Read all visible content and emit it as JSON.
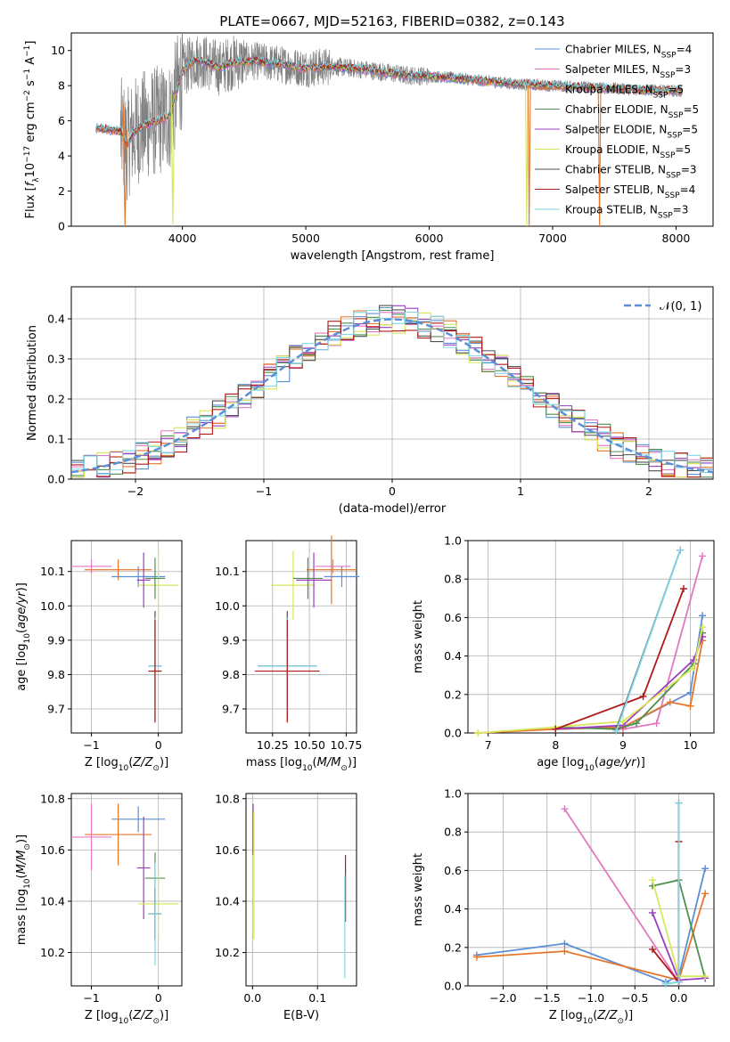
{
  "figure_title": "PLATE=0667, MJD=52163, FIBERID=0382, z=0.143",
  "palette": {
    "chabrier_miles": "#5b8fd6",
    "salpeter_miles": "#e377c2",
    "kroupa_miles": "#e5772a",
    "chabrier_elodie": "#4f8f4f",
    "salpeter_elodie": "#9b3fbf",
    "kroupa_elodie": "#d8e65c",
    "chabrier_stelib": "#505050",
    "salpeter_stelib": "#b01a1a",
    "kroupa_stelib": "#7fd6e6",
    "data": "#808080"
  },
  "chart_data": [
    {
      "id": "spectrum",
      "type": "line",
      "title": "PLATE=0667, MJD=52163, FIBERID=0382, z=0.143",
      "xlabel": "wavelength [Angstrom, rest frame]",
      "ylabel": "Flux [f_λ10^-17 erg cm^-2 s^-1 A^-1]",
      "xlim": [
        3100,
        8300
      ],
      "ylim": [
        0,
        11
      ],
      "xticks": [
        4000,
        5000,
        6000,
        7000,
        8000
      ],
      "yticks": [
        0,
        2,
        4,
        6,
        8,
        10
      ],
      "grid": false,
      "legend": "top-right",
      "legend_entries": [
        {
          "key": "chabrier_miles",
          "text": "Chabrier MILES, N",
          "sub": "SSP",
          "num": "=4"
        },
        {
          "key": "salpeter_miles",
          "text": "Salpeter MILES, N",
          "sub": "SSP",
          "num": "=3"
        },
        {
          "key": "kroupa_miles",
          "text": "Kroupa MILES, N",
          "sub": "SSP",
          "num": "=5"
        },
        {
          "key": "chabrier_elodie",
          "text": "Chabrier ELODIE, N",
          "sub": "SSP",
          "num": "=5"
        },
        {
          "key": "salpeter_elodie",
          "text": "Salpeter ELODIE, N",
          "sub": "SSP",
          "num": "=5"
        },
        {
          "key": "kroupa_elodie",
          "text": "Kroupa ELODIE, N",
          "sub": "SSP",
          "num": "=5"
        },
        {
          "key": "chabrier_stelib",
          "text": "Chabrier STELIB, N",
          "sub": "SSP",
          "num": "=3"
        },
        {
          "key": "salpeter_stelib",
          "text": "Salpeter STELIB, N",
          "sub": "SSP",
          "num": "=4"
        },
        {
          "key": "kroupa_stelib",
          "text": "Kroupa STELIB, N",
          "sub": "SSP",
          "num": "=3"
        }
      ],
      "continuum": [
        [
          3300,
          5.6
        ],
        [
          3400,
          5.5
        ],
        [
          3500,
          5.4
        ],
        [
          3550,
          4.6
        ],
        [
          3600,
          5.3
        ],
        [
          3650,
          5.6
        ],
        [
          3700,
          5.8
        ],
        [
          3800,
          6.0
        ],
        [
          3900,
          6.3
        ],
        [
          3950,
          7.6
        ],
        [
          4000,
          8.8
        ],
        [
          4100,
          9.5
        ],
        [
          4200,
          9.3
        ],
        [
          4300,
          9.0
        ],
        [
          4400,
          9.3
        ],
        [
          4600,
          9.4
        ],
        [
          4800,
          9.2
        ],
        [
          5000,
          9.0
        ],
        [
          5200,
          9.1
        ],
        [
          5500,
          8.9
        ],
        [
          5800,
          8.6
        ],
        [
          6100,
          8.5
        ],
        [
          6400,
          8.3
        ],
        [
          6700,
          8.1
        ],
        [
          7000,
          8.0
        ],
        [
          7300,
          7.9
        ],
        [
          7600,
          7.8
        ],
        [
          8000,
          7.7
        ],
        [
          8050,
          7.7
        ]
      ],
      "model_spikes": [
        {
          "key": "kroupa_miles",
          "x": [
            3520,
            3535,
            3550
          ],
          "y": [
            7.0,
            0.0,
            5.5
          ]
        },
        {
          "key": "kroupa_elodie",
          "x": [
            3910,
            3922,
            3935
          ],
          "y": [
            7.5,
            0.0,
            7.0
          ]
        },
        {
          "key": "kroupa_elodie",
          "x": [
            6780,
            6790,
            6800
          ],
          "y": [
            8.0,
            0.0,
            8.0
          ]
        },
        {
          "key": "kroupa_miles",
          "x": [
            6800,
            6810,
            6820
          ],
          "y": [
            8.0,
            0.0,
            8.0
          ]
        },
        {
          "key": "kroupa_miles",
          "x": [
            7370,
            7380,
            7390
          ],
          "y": [
            7.9,
            0.0,
            7.9
          ]
        }
      ]
    },
    {
      "id": "residuals",
      "type": "histogram",
      "xlabel": "(data-model)/error",
      "ylabel": "Normed distribution",
      "xlim": [
        -2.5,
        2.5
      ],
      "ylim": [
        0,
        0.48
      ],
      "xticks": [
        -2,
        -1,
        0,
        1,
        2
      ],
      "yticks": [
        0.0,
        0.1,
        0.2,
        0.3,
        0.4
      ],
      "grid": true,
      "legend": "top-right",
      "reference_curve": {
        "label": "𝒩(0, 1)",
        "color": "#5b8fd6",
        "mean": 0,
        "sigma": 1
      },
      "bin_width": 0.1,
      "bin_start": -2.5
    },
    {
      "id": "age_vs_Z",
      "type": "scatter",
      "xlabel": "Z [log10(Z/Z⊙)]",
      "ylabel": "age [log10(age/yr)]",
      "xlim": [
        -1.3,
        0.35
      ],
      "ylim": [
        9.63,
        10.19
      ],
      "xticks": [
        -1,
        0
      ],
      "yticks": [
        9.7,
        9.8,
        9.9,
        10.0,
        10.1
      ],
      "grid": true,
      "points": [
        {
          "key": "salpeter_miles",
          "x": -1.0,
          "y": 10.115,
          "xerr": 0.3,
          "yerr": 0.02
        },
        {
          "key": "kroupa_miles",
          "x": -0.6,
          "y": 10.105,
          "xerr": 0.5,
          "yerr": 0.03
        },
        {
          "key": "chabrier_miles",
          "x": -0.3,
          "y": 10.085,
          "xerr": 0.4,
          "yerr": 0.03
        },
        {
          "key": "kroupa_elodie",
          "x": 0.0,
          "y": 10.06,
          "xerr": 0.3,
          "yerr": 0.1
        },
        {
          "key": "salpeter_elodie",
          "x": -0.22,
          "y": 10.075,
          "xerr": 0.1,
          "yerr": 0.08
        },
        {
          "key": "chabrier_elodie",
          "x": -0.05,
          "y": 10.08,
          "xerr": 0.15,
          "yerr": 0.06
        },
        {
          "key": "chabrier_stelib",
          "x": -0.05,
          "y": 9.825,
          "xerr": 0.1,
          "yerr": 0.16
        },
        {
          "key": "kroupa_stelib",
          "x": -0.05,
          "y": 9.825,
          "xerr": 0.1,
          "yerr": 0.14
        },
        {
          "key": "salpeter_stelib",
          "x": -0.05,
          "y": 9.81,
          "xerr": 0.1,
          "yerr": 0.15
        }
      ]
    },
    {
      "id": "age_vs_mass",
      "type": "scatter",
      "xlabel": "mass [log10(M/M⊙)]",
      "ylabel": "",
      "xlim": [
        10.07,
        10.82
      ],
      "ylim": [
        9.63,
        10.19
      ],
      "xticks": [
        10.25,
        10.5,
        10.75
      ],
      "yticks": [
        9.7,
        9.8,
        9.9,
        10.0,
        10.1
      ],
      "grid": true,
      "points": [
        {
          "key": "salpeter_miles",
          "x": 10.66,
          "y": 10.115,
          "xerr": 0.12,
          "yerr": 0.02
        },
        {
          "key": "kroupa_miles",
          "x": 10.65,
          "y": 10.105,
          "xerr": 0.17,
          "yerr": 0.1
        },
        {
          "key": "chabrier_miles",
          "x": 10.72,
          "y": 10.085,
          "xerr": 0.12,
          "yerr": 0.03
        },
        {
          "key": "kroupa_elodie",
          "x": 10.39,
          "y": 10.06,
          "xerr": 0.15,
          "yerr": 0.1
        },
        {
          "key": "salpeter_elodie",
          "x": 10.53,
          "y": 10.075,
          "xerr": 0.12,
          "yerr": 0.08
        },
        {
          "key": "chabrier_elodie",
          "x": 10.49,
          "y": 10.08,
          "xerr": 0.1,
          "yerr": 0.06
        },
        {
          "key": "chabrier_stelib",
          "x": 10.35,
          "y": 9.825,
          "xerr": 0.2,
          "yerr": 0.16
        },
        {
          "key": "kroupa_stelib",
          "x": 10.35,
          "y": 9.825,
          "xerr": 0.2,
          "yerr": 0.14
        },
        {
          "key": "salpeter_stelib",
          "x": 10.35,
          "y": 9.81,
          "xerr": 0.22,
          "yerr": 0.15
        }
      ]
    },
    {
      "id": "weight_vs_age",
      "type": "line",
      "xlabel": "age [log10(age/yr)]",
      "ylabel": "mass weight",
      "xlim": [
        6.7,
        10.35
      ],
      "ylim": [
        0,
        1.0
      ],
      "xticks": [
        7,
        8,
        9,
        10
      ],
      "yticks": [
        0.0,
        0.2,
        0.4,
        0.6,
        0.8,
        1.0
      ],
      "grid": true,
      "series": [
        {
          "key": "chabrier_miles",
          "x": [
            8.0,
            9.0,
            10.0,
            10.18
          ],
          "y": [
            0.02,
            0.03,
            0.21,
            0.61
          ]
        },
        {
          "key": "salpeter_miles",
          "x": [
            9.0,
            9.5,
            10.18
          ],
          "y": [
            0.02,
            0.05,
            0.92
          ]
        },
        {
          "key": "kroupa_miles",
          "x": [
            6.85,
            8.0,
            9.0,
            9.7,
            10.0,
            10.18
          ],
          "y": [
            0.0,
            0.02,
            0.03,
            0.16,
            0.14,
            0.48
          ]
        },
        {
          "key": "chabrier_elodie",
          "x": [
            8.0,
            8.9,
            9.2,
            10.05,
            10.18
          ],
          "y": [
            0.03,
            0.02,
            0.05,
            0.36,
            0.52
          ]
        },
        {
          "key": "salpeter_elodie",
          "x": [
            8.0,
            9.0,
            10.05,
            10.18
          ],
          "y": [
            0.02,
            0.04,
            0.38,
            0.5
          ]
        },
        {
          "key": "kroupa_elodie",
          "x": [
            6.85,
            8.0,
            9.0,
            10.05,
            10.18
          ],
          "y": [
            0.0,
            0.03,
            0.06,
            0.34,
            0.55
          ]
        },
        {
          "key": "chabrier_stelib",
          "x": [
            8.9,
            9.85
          ],
          "y": [
            0.02,
            0.95
          ]
        },
        {
          "key": "salpeter_stelib",
          "x": [
            8.0,
            9.3,
            9.9
          ],
          "y": [
            0.02,
            0.19,
            0.75
          ]
        },
        {
          "key": "kroupa_stelib",
          "x": [
            8.9,
            9.85
          ],
          "y": [
            0.01,
            0.95
          ]
        }
      ]
    },
    {
      "id": "mass_vs_Z",
      "type": "scatter",
      "xlabel": "Z [log10(Z/Z⊙)]",
      "ylabel": "mass [log10(M/M⊙)]",
      "xlim": [
        -1.3,
        0.35
      ],
      "ylim": [
        10.07,
        10.82
      ],
      "xticks": [
        -1,
        0
      ],
      "yticks": [
        10.2,
        10.4,
        10.6,
        10.8
      ],
      "grid": true,
      "points": [
        {
          "key": "chabrier_miles",
          "x": -0.3,
          "y": 10.72,
          "xerr": 0.4,
          "yerr": 0.05
        },
        {
          "key": "kroupa_miles",
          "x": -0.6,
          "y": 10.66,
          "xerr": 0.5,
          "yerr": 0.12
        },
        {
          "key": "salpeter_miles",
          "x": -1.0,
          "y": 10.65,
          "xerr": 0.3,
          "yerr": 0.13
        },
        {
          "key": "salpeter_elodie",
          "x": -0.22,
          "y": 10.53,
          "xerr": 0.1,
          "yerr": 0.2
        },
        {
          "key": "chabrier_elodie",
          "x": -0.05,
          "y": 10.49,
          "xerr": 0.15,
          "yerr": 0.1
        },
        {
          "key": "kroupa_elodie",
          "x": 0.0,
          "y": 10.39,
          "xerr": 0.3,
          "yerr": 0.13
        },
        {
          "key": "chabrier_stelib",
          "x": -0.05,
          "y": 10.35,
          "xerr": 0.1,
          "yerr": 0.1
        },
        {
          "key": "salpeter_stelib",
          "x": -0.05,
          "y": 10.35,
          "xerr": 0.1,
          "yerr": 0.1
        },
        {
          "key": "kroupa_stelib",
          "x": -0.05,
          "y": 10.35,
          "xerr": 0.1,
          "yerr": 0.2
        }
      ]
    },
    {
      "id": "mass_vs_ebv",
      "type": "scatter",
      "xlabel": "E(B-V)",
      "ylabel": "",
      "xlim": [
        -0.01,
        0.16
      ],
      "ylim": [
        10.07,
        10.82
      ],
      "xticks": [
        0.0,
        0.1
      ],
      "yticks": [
        10.2,
        10.4,
        10.6,
        10.8
      ],
      "grid": true,
      "points": [
        {
          "key": "salpeter_elodie",
          "x": 0.001,
          "y": 10.68,
          "xerr": 0.0,
          "yerr": 0.1
        },
        {
          "key": "kroupa_elodie",
          "x": 0.002,
          "y": 10.5,
          "xerr": 0.0,
          "yerr": 0.25
        },
        {
          "key": "salpeter_stelib",
          "x": 0.143,
          "y": 10.45,
          "xerr": 0.0,
          "yerr": 0.13
        },
        {
          "key": "kroupa_stelib",
          "x": 0.142,
          "y": 10.3,
          "xerr": 0.0,
          "yerr": 0.2
        }
      ]
    },
    {
      "id": "weight_vs_Z",
      "type": "line",
      "xlabel": "Z [log10(Z/Z⊙)]",
      "ylabel": "mass weight",
      "xlim": [
        -2.4,
        0.4
      ],
      "ylim": [
        0,
        1.0
      ],
      "xticks": [
        -2.0,
        -1.5,
        -1.0,
        -0.5,
        0.0
      ],
      "yticks": [
        0.0,
        0.2,
        0.4,
        0.6,
        0.8,
        1.0
      ],
      "grid": true,
      "series": [
        {
          "key": "chabrier_miles",
          "x": [
            -2.3,
            -1.3,
            -0.15,
            0.0,
            0.3
          ],
          "y": [
            0.16,
            0.22,
            0.02,
            0.05,
            0.61
          ]
        },
        {
          "key": "kroupa_miles",
          "x": [
            -2.3,
            -1.3,
            0.0,
            0.3
          ],
          "y": [
            0.15,
            0.18,
            0.03,
            0.48
          ]
        },
        {
          "key": "salpeter_miles",
          "x": [
            -1.3,
            0.0
          ],
          "y": [
            0.92,
            0.02
          ]
        },
        {
          "key": "chabrier_elodie",
          "x": [
            -0.3,
            0.0,
            0.3
          ],
          "y": [
            0.52,
            0.55,
            0.04
          ]
        },
        {
          "key": "salpeter_elodie",
          "x": [
            -0.3,
            0.0,
            0.3
          ],
          "y": [
            0.38,
            0.03,
            0.04
          ]
        },
        {
          "key": "kroupa_elodie",
          "x": [
            -0.3,
            0.0,
            0.3
          ],
          "y": [
            0.55,
            0.05,
            0.05
          ]
        },
        {
          "key": "chabrier_stelib",
          "x": [
            0.0,
            0.0
          ],
          "y": [
            0.95,
            0.02
          ]
        },
        {
          "key": "salpeter_stelib",
          "x": [
            -0.3,
            0.0,
            0.0
          ],
          "y": [
            0.19,
            0.02,
            0.75
          ]
        },
        {
          "key": "kroupa_stelib",
          "x": [
            -0.15,
            0.0,
            0.0
          ],
          "y": [
            0.01,
            0.02,
            0.95
          ]
        }
      ]
    }
  ]
}
